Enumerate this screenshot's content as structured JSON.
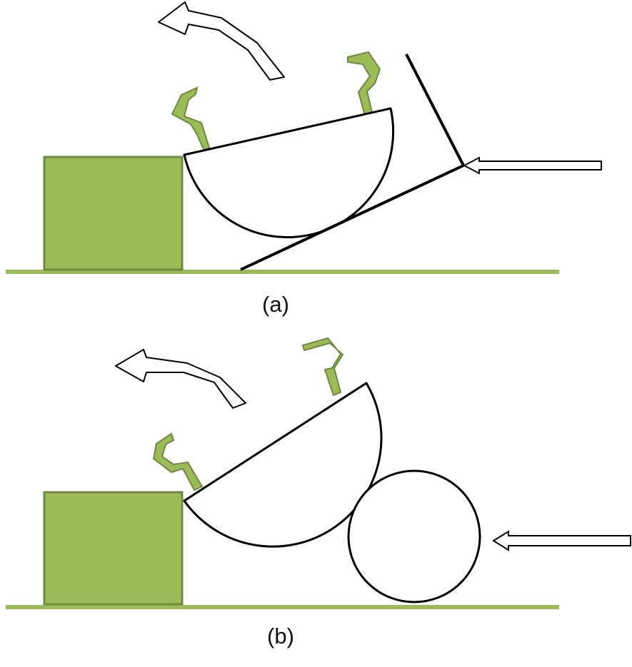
{
  "panels": [
    {
      "label": "(a)",
      "pusher": "wedge-plate"
    },
    {
      "label": "(b)",
      "pusher": "roller"
    }
  ],
  "colors": {
    "block_fill": "#9bbb59",
    "block_stroke": "#71893f",
    "ground": "#9bbb59",
    "outline": "#000000",
    "hook": "#9bbb59"
  },
  "icons": {
    "rotation_arrow": "curved-arrow-left-icon",
    "push_arrow": "arrow-left-icon"
  }
}
